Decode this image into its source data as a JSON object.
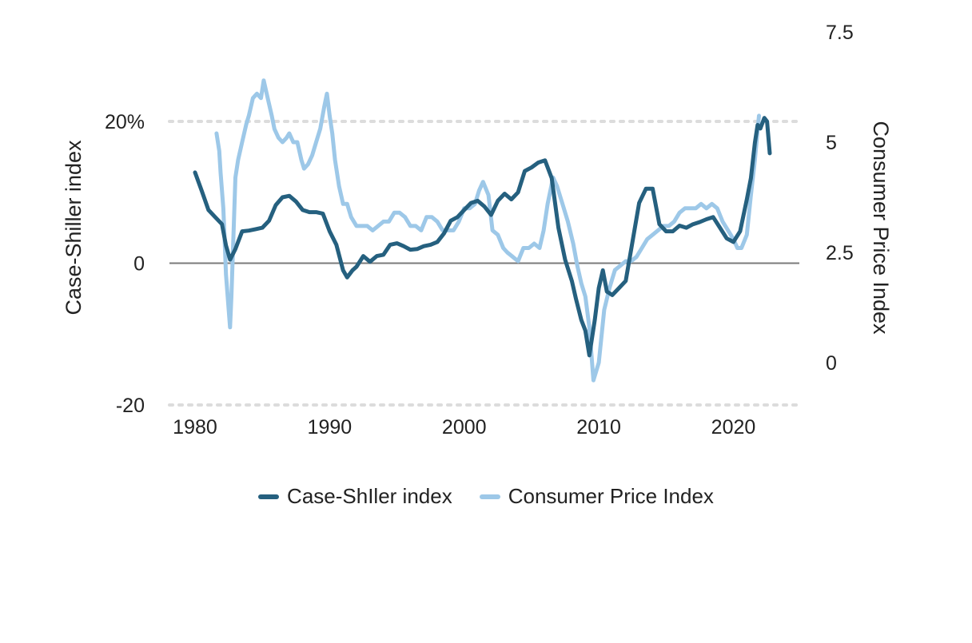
{
  "chart_data": {
    "type": "line",
    "x_ticks": [
      "1980",
      "1990",
      "2000",
      "2010",
      "2020"
    ],
    "xlim": [
      1978.1,
      2024.9
    ],
    "left_axis": {
      "title": "Case-Shiller index",
      "ticks": [
        {
          "value": 20,
          "label": "20%"
        },
        {
          "value": 0,
          "label": "0"
        },
        {
          "value": -20,
          "label": "-20"
        }
      ],
      "ylim": [
        -20,
        20
      ]
    },
    "right_axis": {
      "title": "Consumer Price Index",
      "ticks": [
        {
          "value": 7.5,
          "label": "7.5"
        },
        {
          "value": 5,
          "label": "5"
        },
        {
          "value": 2.5,
          "label": "2.5"
        },
        {
          "value": 0,
          "label": "0"
        }
      ],
      "ylim": [
        -1.0,
        5.5
      ]
    },
    "gridlines": [
      20,
      -20
    ],
    "zero_line": 0,
    "legend_position": "bottom",
    "series": [
      {
        "name": "Case-ShIler index",
        "axis": "left",
        "color": "#25607f",
        "x": [
          1980.0,
          1980.5,
          1981.0,
          1981.5,
          1982.0,
          1982.3,
          1982.6,
          1983.0,
          1983.5,
          1984.0,
          1984.5,
          1985.0,
          1985.5,
          1986.0,
          1986.5,
          1987.0,
          1987.5,
          1988.0,
          1988.5,
          1989.0,
          1989.5,
          1990.0,
          1990.5,
          1991.0,
          1991.3,
          1991.7,
          1992.0,
          1992.5,
          1993.0,
          1993.5,
          1994.0,
          1994.5,
          1995.0,
          1995.5,
          1996.0,
          1996.5,
          1997.0,
          1997.5,
          1998.0,
          1998.5,
          1999.0,
          1999.5,
          2000.0,
          2000.5,
          2001.0,
          2001.5,
          2002.0,
          2002.5,
          2003.0,
          2003.5,
          2004.0,
          2004.5,
          2005.0,
          2005.5,
          2006.0,
          2006.5,
          2007.0,
          2007.5,
          2008.0,
          2008.3,
          2008.7,
          2009.0,
          2009.3,
          2009.7,
          2010.0,
          2010.3,
          2010.6,
          2011.0,
          2011.5,
          2012.0,
          2012.5,
          2013.0,
          2013.5,
          2014.0,
          2014.5,
          2015.0,
          2015.5,
          2016.0,
          2016.5,
          2017.0,
          2017.5,
          2018.0,
          2018.5,
          2019.0,
          2019.5,
          2020.0,
          2020.5,
          2021.0,
          2021.3,
          2021.6,
          2021.8,
          2022.0,
          2022.3,
          2022.5,
          2022.7
        ],
        "values": [
          12.8,
          10.2,
          7.5,
          6.5,
          5.5,
          2.5,
          0.5,
          2.0,
          4.5,
          4.6,
          4.8,
          5.0,
          6.0,
          8.2,
          9.3,
          9.5,
          8.7,
          7.5,
          7.2,
          7.2,
          7.0,
          4.5,
          2.6,
          -1.0,
          -2.0,
          -1.0,
          -0.5,
          1.0,
          0.2,
          1.0,
          1.2,
          2.6,
          2.8,
          2.4,
          1.9,
          2.0,
          2.4,
          2.6,
          3.0,
          4.2,
          6.0,
          6.5,
          7.5,
          8.5,
          8.8,
          8.0,
          6.8,
          8.8,
          9.8,
          9.0,
          10.0,
          13.0,
          13.5,
          14.2,
          14.5,
          12.0,
          5.0,
          0.5,
          -2.5,
          -5.0,
          -8.0,
          -9.5,
          -13.0,
          -8.0,
          -3.5,
          -1.0,
          -4.0,
          -4.5,
          -3.5,
          -2.5,
          3.0,
          8.5,
          10.5,
          10.5,
          5.5,
          4.5,
          4.5,
          5.3,
          5.0,
          5.5,
          5.8,
          6.2,
          6.5,
          5.0,
          3.5,
          3.0,
          4.5,
          9.0,
          12.0,
          17.0,
          19.5,
          19.0,
          20.5,
          20.0,
          15.5
        ]
      },
      {
        "name": "Consumer Price Index",
        "axis": "right",
        "color": "#9dc8e8",
        "x": [
          1981.6,
          1981.8,
          1981.9,
          1982.1,
          1982.2,
          1982.3,
          1982.5,
          1982.6,
          1982.7,
          1983.0,
          1983.2,
          1983.5,
          1983.8,
          1984.0,
          1984.3,
          1984.6,
          1984.9,
          1985.1,
          1985.4,
          1985.7,
          1985.9,
          1986.2,
          1986.5,
          1986.8,
          1987.0,
          1987.3,
          1987.6,
          1987.9,
          1988.1,
          1988.4,
          1988.7,
          1989.0,
          1989.3,
          1989.6,
          1989.8,
          1990.0,
          1990.2,
          1990.4,
          1990.7,
          1991.0,
          1991.3,
          1991.6,
          1992.0,
          1992.4,
          1992.8,
          1993.2,
          1993.6,
          1994.0,
          1994.4,
          1994.8,
          1995.2,
          1995.6,
          1996.0,
          1996.4,
          1996.8,
          1997.2,
          1997.6,
          1998.0,
          1998.4,
          1998.8,
          1999.2,
          1999.6,
          2000.0,
          2000.4,
          2000.8,
          2001.1,
          2001.4,
          2001.8,
          2002.1,
          2002.5,
          2002.9,
          2003.2,
          2003.6,
          2004.0,
          2004.4,
          2004.8,
          2005.2,
          2005.6,
          2005.9,
          2006.2,
          2006.6,
          2006.9,
          2007.3,
          2007.7,
          2008.1,
          2008.4,
          2008.7,
          2009.0,
          2009.3,
          2009.6,
          2010.0,
          2010.4,
          2010.8,
          2011.2,
          2011.6,
          2012.0,
          2012.4,
          2012.8,
          2013.2,
          2013.6,
          2014.0,
          2014.4,
          2014.8,
          2015.2,
          2015.6,
          2016.0,
          2016.4,
          2016.8,
          2017.2,
          2017.6,
          2018.0,
          2018.4,
          2018.8,
          2019.2,
          2019.6,
          2020.0,
          2020.3,
          2020.6,
          2021.0,
          2021.3,
          2021.6,
          2021.9
        ],
        "values": [
          5.2,
          4.8,
          4.3,
          3.5,
          2.8,
          2.0,
          1.2,
          0.8,
          1.5,
          4.2,
          4.6,
          5.0,
          5.4,
          5.6,
          6.0,
          6.1,
          6.0,
          6.4,
          6.0,
          5.6,
          5.3,
          5.1,
          5.0,
          5.1,
          5.2,
          5.0,
          5.0,
          4.6,
          4.4,
          4.5,
          4.7,
          5.0,
          5.3,
          5.8,
          6.1,
          5.6,
          5.2,
          4.6,
          4.0,
          3.6,
          3.6,
          3.3,
          3.1,
          3.1,
          3.1,
          3.0,
          3.1,
          3.2,
          3.2,
          3.4,
          3.4,
          3.3,
          3.1,
          3.1,
          3.0,
          3.3,
          3.3,
          3.2,
          3.0,
          3.0,
          3.0,
          3.2,
          3.5,
          3.5,
          3.6,
          3.9,
          4.1,
          3.8,
          3.0,
          2.9,
          2.6,
          2.5,
          2.4,
          2.3,
          2.6,
          2.6,
          2.7,
          2.6,
          3.0,
          3.6,
          4.2,
          4.0,
          3.6,
          3.2,
          2.7,
          2.2,
          1.8,
          1.5,
          0.8,
          -0.4,
          0.0,
          1.2,
          1.7,
          2.1,
          2.2,
          2.3,
          2.3,
          2.4,
          2.6,
          2.8,
          2.9,
          3.0,
          3.1,
          3.1,
          3.2,
          3.4,
          3.5,
          3.5,
          3.5,
          3.6,
          3.5,
          3.6,
          3.5,
          3.2,
          3.0,
          2.8,
          2.6,
          2.6,
          2.9,
          3.8,
          4.6,
          5.6
        ]
      }
    ]
  }
}
